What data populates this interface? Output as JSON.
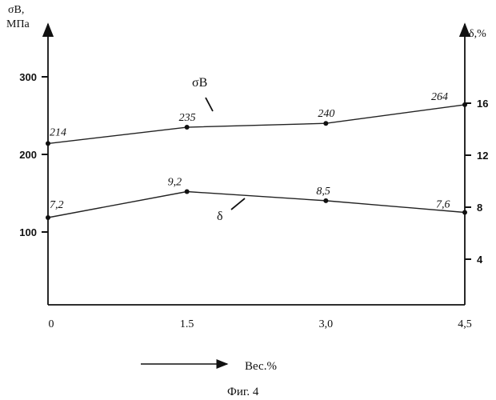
{
  "chart_data": {
    "type": "line",
    "title": "",
    "caption": "Фиг. 4",
    "xlabel": "Вес.%",
    "x": [
      0,
      1.5,
      3.0,
      4.5
    ],
    "x_tick_labels": [
      "0",
      "1.5",
      "3,0",
      "4,5"
    ],
    "xlim": [
      0,
      4.5
    ],
    "y_left": {
      "label_line1": "σB,",
      "label_line2": "МПа",
      "ticks": [
        "300",
        "200",
        "100"
      ],
      "tick_values": [
        300,
        200,
        100
      ],
      "ylim": [
        0,
        350
      ]
    },
    "y_right": {
      "label": "δ,%",
      "ticks": [
        "16",
        "12",
        "8",
        "4"
      ],
      "tick_values": [
        16,
        12,
        8,
        4
      ],
      "ylim": [
        0,
        22
      ]
    },
    "series": [
      {
        "name": "σB",
        "axis": "left",
        "values": [
          214,
          235,
          240,
          264
        ],
        "data_labels": [
          "214",
          "235",
          "240",
          "264"
        ]
      },
      {
        "name": "δ",
        "axis": "right",
        "values": [
          7.2,
          9.2,
          8.5,
          7.6
        ],
        "data_labels": [
          "7,2",
          "9,2",
          "8,5",
          "7,6"
        ]
      }
    ],
    "grid": false,
    "legend": "inline labels"
  }
}
